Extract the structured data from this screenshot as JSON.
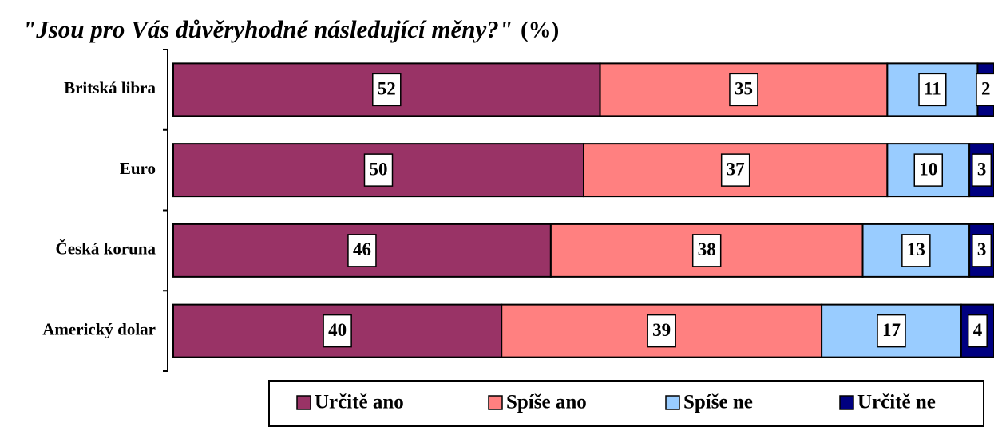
{
  "chart_data": {
    "type": "stacked_bar_horizontal",
    "title": "\"Jsou pro Vás důvěryhodné následující měny?\"",
    "subtitle": "(%)",
    "categories": [
      "Britská libra",
      "Euro",
      "Česká koruna",
      "Americký dolar"
    ],
    "series": [
      {
        "name": "Určitě ano",
        "color": "#993366",
        "values": [
          52,
          50,
          46,
          40
        ]
      },
      {
        "name": "Spíše ano",
        "color": "#ff8080",
        "values": [
          35,
          37,
          38,
          39
        ]
      },
      {
        "name": "Spíše ne",
        "color": "#99ccff",
        "values": [
          11,
          10,
          13,
          17
        ]
      },
      {
        "name": "Určitě ne",
        "color": "#000080",
        "values": [
          2,
          3,
          3,
          4
        ]
      }
    ],
    "xlim": [
      0,
      100
    ],
    "legend": "bottom"
  }
}
